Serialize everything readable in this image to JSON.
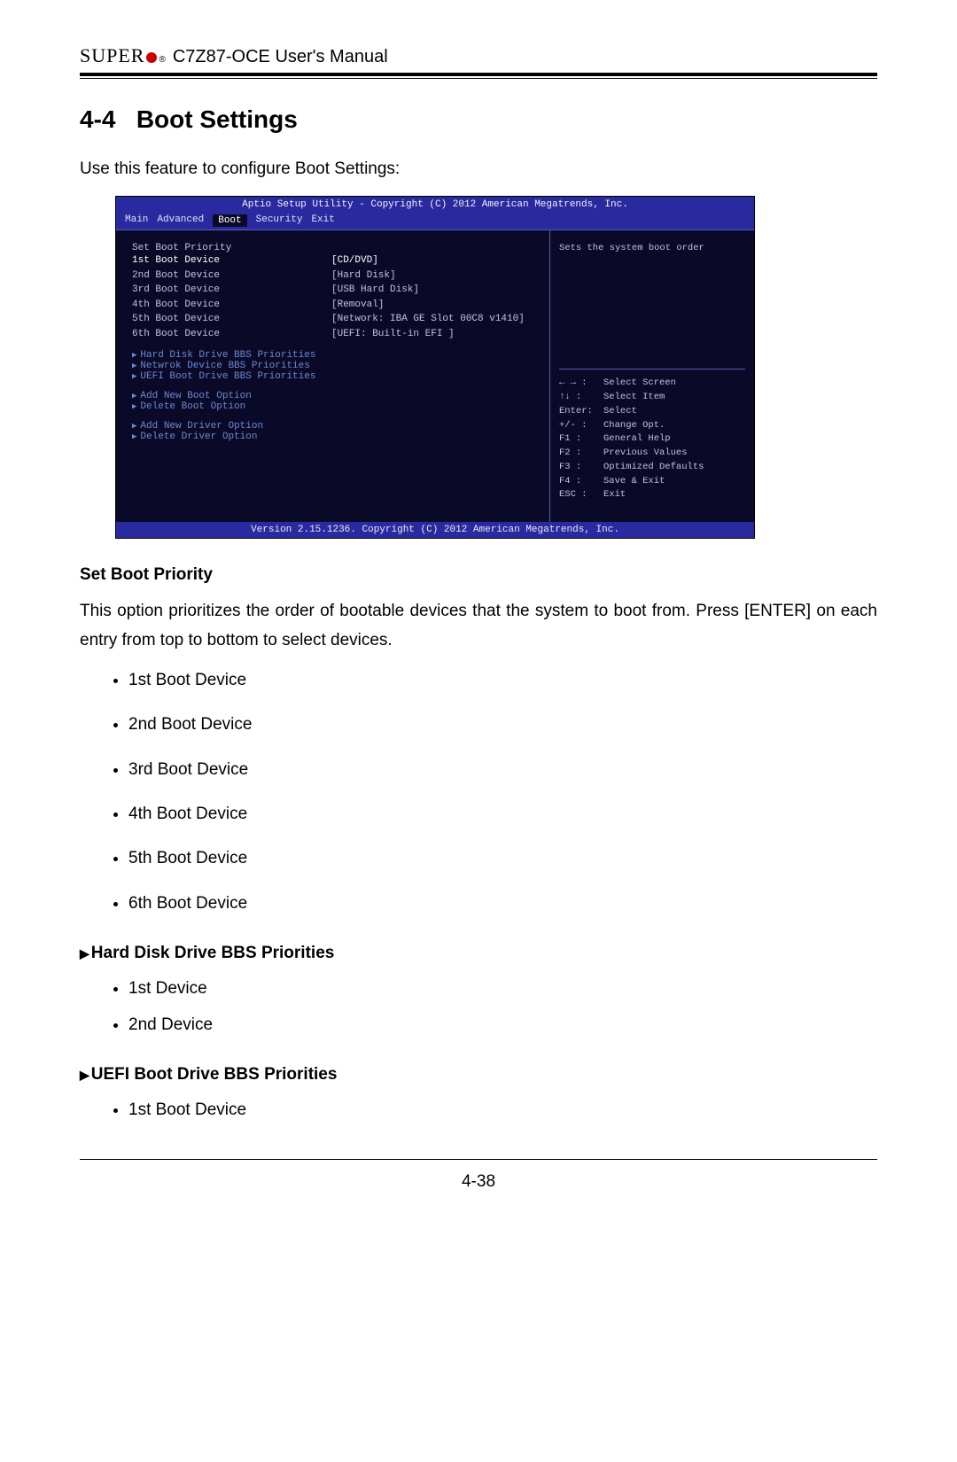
{
  "header": {
    "brand": "SUPER",
    "reg": "®",
    "manual": "C7Z87-OCE User's Manual"
  },
  "section": {
    "number": "4-4",
    "title": "Boot Settings",
    "intro": "Use this feature to configure Boot Settings:"
  },
  "bios": {
    "top": "Aptio Setup Utility - Copyright (C) 2012 American Megatrends, Inc.",
    "tabs": [
      "Main",
      "Advanced",
      "Boot",
      "Security",
      "Exit"
    ],
    "active_tab_index": 2,
    "help_text": "Sets the system boot order",
    "heading": "Set Boot Priority",
    "devices": [
      {
        "label": "1st Boot Device",
        "value": "[CD/DVD]",
        "highlight": true
      },
      {
        "label": "2nd Boot Device",
        "value": "[Hard Disk]"
      },
      {
        "label": "3rd Boot Device",
        "value": "[USB Hard Disk]"
      },
      {
        "label": "4th Boot Device",
        "value": "[Removal]"
      },
      {
        "label": "5th Boot Device",
        "value": "[Network: IBA GE Slot 00C8 v1410]"
      },
      {
        "label": "6th Boot Device",
        "value": "[UEFI: Built-in EFI ]"
      }
    ],
    "links1": [
      "Hard Disk Drive BBS Priorities",
      "Netwrok Device BBS Priorities",
      "UEFI Boot Drive BBS Priorities"
    ],
    "links2": [
      "Add New Boot Option",
      "Delete Boot Option"
    ],
    "links3": [
      "Add New Driver Option",
      "Delete Driver Option"
    ],
    "help_keys": [
      {
        "k": "← → :",
        "v": "Select Screen"
      },
      {
        "k": "↑↓ :",
        "v": "Select Item"
      },
      {
        "k": "Enter:",
        "v": "Select"
      },
      {
        "k": "+/- :",
        "v": "Change Opt."
      },
      {
        "k": "F1 :",
        "v": "General Help"
      },
      {
        "k": "F2 :",
        "v": "Previous Values"
      },
      {
        "k": "F3 :",
        "v": "Optimized Defaults"
      },
      {
        "k": "F4 :",
        "v": "Save & Exit"
      },
      {
        "k": "ESC :",
        "v": "Exit"
      }
    ],
    "bottom": "Version 2.15.1236. Copyright (C) 2012 American Megatrends, Inc."
  },
  "set_boot": {
    "heading": "Set Boot Priority",
    "text": "This option prioritizes the order of bootable devices that the system to boot from. Press [ENTER] on each entry from top to bottom to select devices.",
    "items": [
      "1st Boot Device",
      "2nd Boot Device",
      "3rd Boot Device",
      "4th Boot Device",
      "5th Boot Device",
      "6th Boot Device"
    ]
  },
  "hdd_bbs": {
    "heading": "Hard Disk Drive BBS Priorities",
    "items": [
      "1st Device",
      "2nd Device"
    ]
  },
  "uefi_bbs": {
    "heading": "UEFI Boot Drive BBS Priorities",
    "items": [
      "1st Boot Device"
    ]
  },
  "page_number": "4-38"
}
